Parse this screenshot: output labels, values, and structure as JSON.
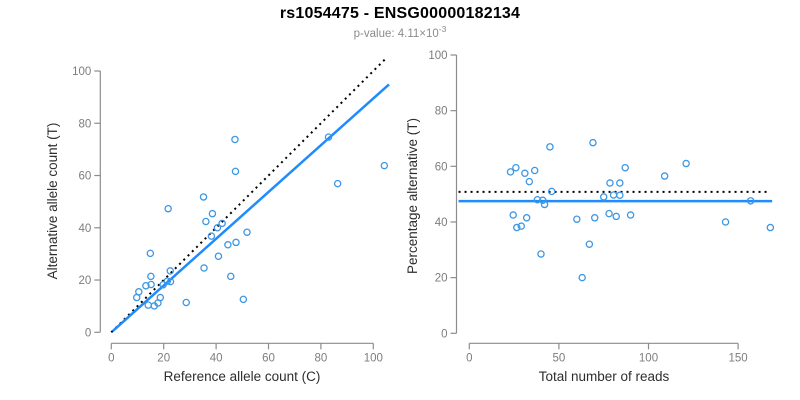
{
  "header": {
    "title": "rs1054475 - ENSG00000182134",
    "pvalue": {
      "label": "p-value: ",
      "base": "4.11×10",
      "exponent": "-3"
    }
  },
  "colors": {
    "point": "#3d97e5",
    "fit_line": "#1f8bff",
    "dotted_line": "#000000",
    "axis": "#8c8c8c",
    "tick_text": "#7d7d7d",
    "axis_label_text": "#2e2e2e",
    "title_text": "#000000",
    "subtitle_text": "#8c8c8c",
    "background": "#ffffff"
  },
  "chart_data": [
    {
      "type": "scatter",
      "name": "ref-vs-alt-count",
      "xlabel": "Reference allele count (C)",
      "ylabel": "Alternative allele count (T)",
      "xticks": [
        0,
        20,
        40,
        60,
        80,
        100
      ],
      "yticks": [
        0,
        20,
        40,
        60,
        80,
        100
      ],
      "xlim": [
        -4,
        106
      ],
      "ylim": [
        -4,
        106
      ],
      "grid": false,
      "legend": false,
      "identity_line": {
        "style": "dotted",
        "slope": 1,
        "intercept": 0,
        "domain": [
          0,
          105.3
        ]
      },
      "fit_line": {
        "style": "solid",
        "slope": 0.895,
        "intercept": 0,
        "domain": [
          0.5,
          106
        ]
      },
      "points": [
        [
          9.7,
          13.3
        ],
        [
          10.5,
          15.5
        ],
        [
          13.2,
          17.8
        ],
        [
          15.1,
          21.4
        ],
        [
          15.2,
          18.3
        ],
        [
          14.9,
          30.2
        ],
        [
          21.7,
          47.3
        ],
        [
          22.5,
          23.5
        ],
        [
          19.8,
          18.2
        ],
        [
          21.4,
          19.6
        ],
        [
          22.6,
          19.4
        ],
        [
          14.1,
          10.4
        ],
        [
          18.7,
          13.3
        ],
        [
          16.4,
          10.1
        ],
        [
          17.8,
          11.2
        ],
        [
          35.4,
          24.6
        ],
        [
          40.9,
          29.1
        ],
        [
          44.5,
          33.5
        ],
        [
          47.6,
          34.4
        ],
        [
          35.2,
          51.8
        ],
        [
          36.1,
          42.4
        ],
        [
          38.6,
          45.4
        ],
        [
          38.2,
          36.8
        ],
        [
          40.5,
          40.0
        ],
        [
          42.3,
          41.7
        ],
        [
          45.6,
          21.4
        ],
        [
          28.6,
          11.4
        ],
        [
          50.4,
          12.6
        ],
        [
          47.2,
          73.8
        ],
        [
          47.4,
          61.6
        ],
        [
          82.9,
          74.7
        ],
        [
          51.8,
          38.3
        ],
        [
          86.4,
          56.9
        ],
        [
          104.2,
          63.8
        ]
      ]
    },
    {
      "type": "scatter",
      "name": "reads-vs-percentage",
      "xlabel": "Total number of reads",
      "ylabel": "Percentage alternative (T)",
      "xticks": [
        0,
        50,
        100,
        150
      ],
      "yticks": [
        0,
        20,
        40,
        60,
        80,
        100
      ],
      "xlim": [
        -6,
        169
      ],
      "ylim": [
        -4,
        104
      ],
      "grid": false,
      "legend": false,
      "reference_line": {
        "style": "dotted",
        "y": 50.8,
        "domain": [
          -6,
          166
        ]
      },
      "fit_line": {
        "style": "solid",
        "y": 47.5,
        "domain": [
          -6,
          169
        ]
      },
      "points": [
        [
          23,
          58
        ],
        [
          26,
          59.5
        ],
        [
          31,
          57.5
        ],
        [
          36.5,
          58.5
        ],
        [
          33.5,
          54.5
        ],
        [
          45,
          67
        ],
        [
          69,
          68.5
        ],
        [
          46,
          51
        ],
        [
          38,
          48
        ],
        [
          41,
          47.8
        ],
        [
          42,
          46.3
        ],
        [
          24.5,
          42.5
        ],
        [
          32,
          41.5
        ],
        [
          26.5,
          38
        ],
        [
          29,
          38.5
        ],
        [
          60,
          41
        ],
        [
          70,
          41.5
        ],
        [
          78,
          43
        ],
        [
          82,
          42
        ],
        [
          87,
          59.5
        ],
        [
          78.5,
          54
        ],
        [
          84,
          54
        ],
        [
          75,
          49
        ],
        [
          80.5,
          49.7
        ],
        [
          84,
          49.6
        ],
        [
          67,
          32
        ],
        [
          40,
          28.5
        ],
        [
          63,
          20
        ],
        [
          121,
          61
        ],
        [
          109,
          56.5
        ],
        [
          157,
          47.6
        ],
        [
          90,
          42.5
        ],
        [
          143,
          40
        ],
        [
          168,
          38
        ]
      ]
    }
  ]
}
